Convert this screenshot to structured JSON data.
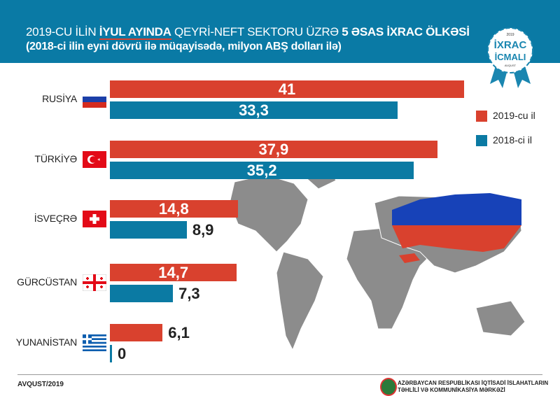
{
  "header": {
    "title_part1": "2019-CU İLİN ",
    "title_highlight": "İYUL AYINDA",
    "title_part2": " QEYRİ-NEFT SEKTORU ÜZRƏ ",
    "title_bold": "5 ƏSAS İXRAC ÖLKƏSİ",
    "subtitle": "(2018-ci ilin eyni dövrü ilə müqayisədə, milyon ABŞ dolları ilə)"
  },
  "badge": {
    "line1": "İXRAC",
    "line2": "İCMALI",
    "year": "2019",
    "month": "AVQUST"
  },
  "colors": {
    "header": "#0a7aa5",
    "series_2019": "#d9412e",
    "series_2018": "#0b7aa3",
    "map": "#8c8c8c"
  },
  "chart_data": {
    "type": "bar",
    "orientation": "horizontal",
    "categories": [
      "RUSİYA",
      "TÜRKİYƏ",
      "İSVEÇRƏ",
      "GÜRCÜSTAN",
      "YUNANİSTAN"
    ],
    "series": [
      {
        "name": "2019-cu il",
        "values": [
          41,
          37.9,
          14.8,
          14.7,
          6.1
        ],
        "labels": [
          "41",
          "37,9",
          "14,8",
          "14,7",
          "6,1"
        ]
      },
      {
        "name": "2018-ci il",
        "values": [
          33.3,
          35.2,
          8.9,
          7.3,
          0
        ],
        "labels": [
          "33,3",
          "35,2",
          "8,9",
          "7,3",
          "0"
        ]
      }
    ],
    "unit": "milyon ABŞ dolları",
    "legend": "right"
  },
  "footer": {
    "date": "AVQUST/2019",
    "org_line1": "AZƏRBAYCAN RESPUBLİKASI İQTİSADİ İSLAHATLARIN",
    "org_line2": "TƏHLİLİ VƏ KOMMUNİKASİYA MƏRKƏZİ"
  }
}
